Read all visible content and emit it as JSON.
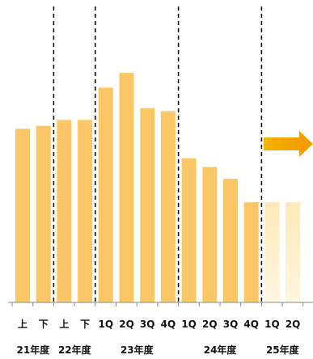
{
  "chart_data": {
    "type": "bar",
    "categories": [
      "上",
      "下",
      "上",
      "下",
      "1Q",
      "2Q",
      "3Q",
      "4Q",
      "1Q",
      "2Q",
      "3Q",
      "4Q",
      "1Q",
      "2Q"
    ],
    "values": [
      59,
      60,
      62,
      62,
      73,
      78,
      66,
      65,
      49,
      46,
      42,
      34,
      34,
      34
    ],
    "forecast_from_index": 12,
    "groups": [
      {
        "label": "21年度",
        "start": 0,
        "end": 1
      },
      {
        "label": "22年度",
        "start": 2,
        "end": 3
      },
      {
        "label": "23年度",
        "start": 4,
        "end": 7
      },
      {
        "label": "24年度",
        "start": 8,
        "end": 11
      },
      {
        "label": "25年度",
        "start": 12,
        "end": 13
      }
    ],
    "ylim": [
      0,
      100
    ],
    "colors": {
      "bar": "#fbc766",
      "forecast_top": "#fde9b8",
      "forecast_bottom": "#fff6e0",
      "arrow": "#f5b400",
      "divider": "#000000",
      "axis": "#888888"
    },
    "arrow_icon": "right-arrow-icon",
    "grid": false,
    "legend": "none"
  }
}
